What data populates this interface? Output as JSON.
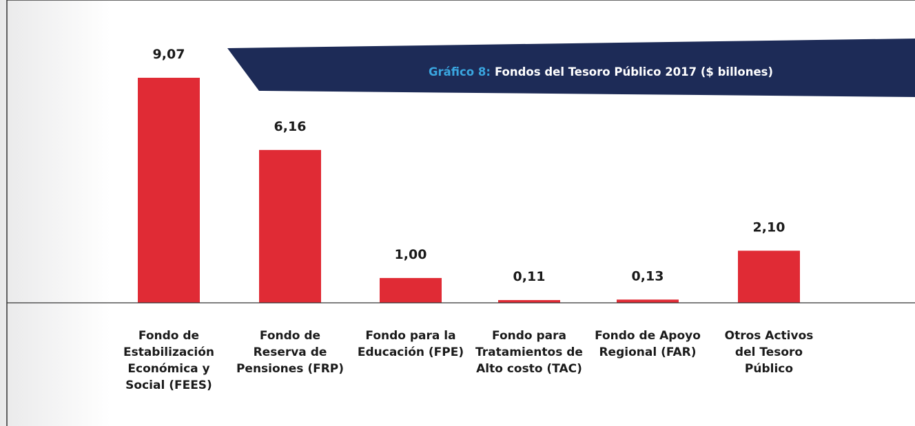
{
  "chart_data": {
    "type": "bar",
    "title_label": "Gráfico 8:",
    "title": "Fondos del Tesoro Público 2017 ($ billones)",
    "categories": [
      "Fondo de Estabilización Económica y Social (FEES)",
      "Fondo de Reserva de Pensiones (FRP)",
      "Fondo para la Educación (FPE)",
      "Fondo para Tratamientos de Alto costo (TAC)",
      "Fondo de Apoyo Regional (FAR)",
      "Otros Activos del Tesoro Público"
    ],
    "values": [
      9.07,
      6.16,
      1.0,
      0.11,
      0.13,
      2.1
    ],
    "value_labels": [
      "9,07",
      "6,16",
      "1,00",
      "0,11",
      "0,13",
      "2,10"
    ],
    "color": "#e02b35"
  }
}
